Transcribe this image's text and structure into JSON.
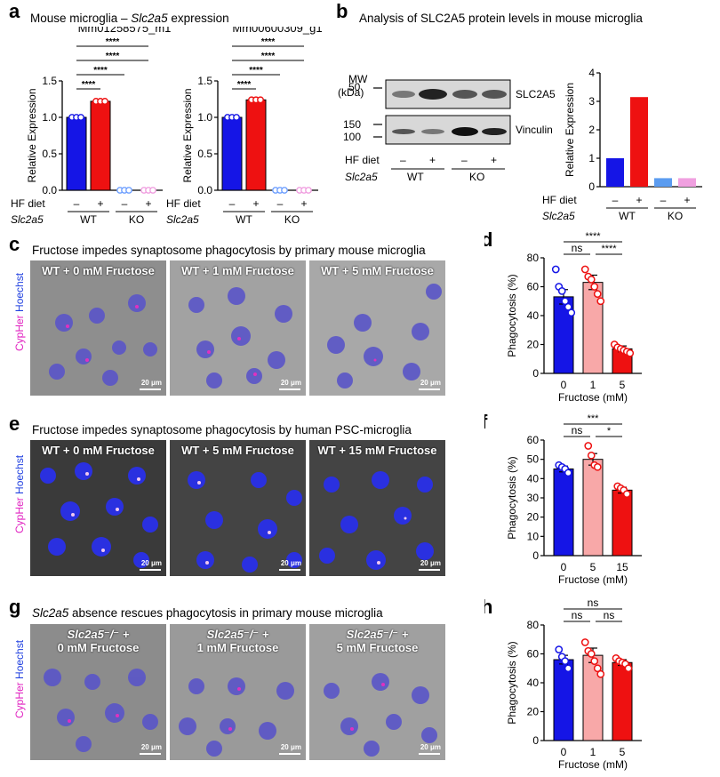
{
  "panel_a": {
    "letter": "a",
    "title_prefix": "Mouse microglia – ",
    "title_gene": "Slc2a5",
    "title_suffix": " expression",
    "hf_label": "HF diet",
    "gene_label": "Slc2a5",
    "minus": "–",
    "plus": "+",
    "wt": "WT",
    "ko": "KO",
    "sig": "****"
  },
  "panel_b": {
    "letter": "b",
    "title": "Analysis of SLC2A5 protein levels in mouse microglia",
    "mw_label_1": "MW",
    "mw_label_2": "(kDa)",
    "mw_50": "50",
    "mw_150": "150",
    "mw_100": "100",
    "band_top": "SLC2A5",
    "band_bottom": "Vinculin",
    "hf_label": "HF diet",
    "gene_label": "Slc2a5",
    "minus": "–",
    "plus": "+",
    "wt": "WT",
    "ko": "KO"
  },
  "panel_c": {
    "letter": "c",
    "title": "Fructose impedes synaptosome phagocytosis by primary mouse microglia",
    "side_label_a": "CypHer",
    "side_label_b": "Hoechst",
    "captions": [
      "WT + 0 mM Fructose",
      "WT + 1 mM Fructose",
      "WT + 5 mM Fructose"
    ],
    "scale": "20 μm"
  },
  "panel_e": {
    "letter": "e",
    "title": "Fructose impedes synaptosome phagocytosis by human PSC-microglia",
    "side_label_a": "CypHer",
    "side_label_b": "Hoechst",
    "captions": [
      "WT + 0 mM Fructose",
      "WT + 5 mM Fructose",
      "WT + 15 mM Fructose"
    ],
    "scale": "20 μm"
  },
  "panel_g": {
    "letter": "g",
    "title_gene": "Slc2a5",
    "title_rest": " absence rescues phagocytosis in primary mouse microglia",
    "side_label_a": "CypHer",
    "side_label_b": "Hoechst",
    "captions_line1": [
      "Slc2a5⁻/⁻ +",
      "Slc2a5⁻/⁻ +",
      "Slc2a5⁻/⁻ +"
    ],
    "captions_line2": [
      "0 mM Fructose",
      "1 mM Fructose",
      "5 mM Fructose"
    ],
    "scale": "20 μm"
  },
  "chart_data": [
    {
      "id": "a1",
      "type": "bar",
      "title": "Mm01258575_m1",
      "ylabel": "Relative Expression",
      "ylim": [
        0,
        1.5
      ],
      "yticks": [
        0,
        0.5,
        1.0,
        1.5
      ],
      "categories": [
        "WT –",
        "WT +",
        "KO –",
        "KO +"
      ],
      "values": [
        1.0,
        1.22,
        0.0,
        0.0
      ],
      "colors": [
        "#1515e6",
        "#ee1111",
        "#6fa0ff",
        "#f0a0e0"
      ],
      "significance": [
        "****",
        "****",
        "****",
        "****"
      ]
    },
    {
      "id": "a2",
      "type": "bar",
      "title": "Mm00600309_g1",
      "ylabel": "Relative Expression",
      "ylim": [
        0,
        1.5
      ],
      "yticks": [
        0,
        0.5,
        1.0,
        1.5
      ],
      "categories": [
        "WT –",
        "WT +",
        "KO –",
        "KO +"
      ],
      "values": [
        1.0,
        1.24,
        0.0,
        0.0
      ],
      "colors": [
        "#1515e6",
        "#ee1111",
        "#6fa0ff",
        "#f0a0e0"
      ],
      "significance": [
        "****",
        "****",
        "****",
        "****"
      ]
    },
    {
      "id": "b",
      "type": "bar",
      "ylabel": "Relative Expression",
      "ylim": [
        0,
        4
      ],
      "yticks": [
        0,
        1,
        2,
        3,
        4
      ],
      "categories": [
        "WT –",
        "WT +",
        "KO –",
        "KO +"
      ],
      "values": [
        1.0,
        3.15,
        0.3,
        0.3
      ],
      "colors": [
        "#1515e6",
        "#ee1111",
        "#5b9cf0",
        "#f0a0e0"
      ]
    },
    {
      "id": "d",
      "type": "bar",
      "letter": "d",
      "ylabel": "Phagocytosis (%)",
      "xlabel": "Fructose (mM)",
      "ylim": [
        0,
        80
      ],
      "yticks": [
        0,
        20,
        40,
        60,
        80
      ],
      "categories": [
        "0",
        "1",
        "5"
      ],
      "values": [
        53,
        63,
        17
      ],
      "errors": [
        5,
        5,
        2
      ],
      "points": [
        [
          72,
          60,
          57,
          50,
          46,
          42
        ],
        [
          72,
          67,
          65,
          60,
          55,
          50
        ],
        [
          20,
          18,
          17,
          16,
          15,
          14
        ]
      ],
      "colors": [
        "#1515e6",
        "#f8a8a8",
        "#ee1111"
      ],
      "significance": [
        {
          "from": 0,
          "to": 2,
          "label": "****"
        },
        {
          "from": 0,
          "to": 1,
          "label": "ns"
        },
        {
          "from": 1,
          "to": 2,
          "label": "****"
        }
      ]
    },
    {
      "id": "f",
      "type": "bar",
      "letter": "f",
      "ylabel": "Phagocytosis (%)",
      "xlabel": "Fructose (mM)",
      "ylim": [
        0,
        60
      ],
      "yticks": [
        0,
        10,
        20,
        30,
        40,
        50,
        60
      ],
      "categories": [
        "0",
        "5",
        "15"
      ],
      "values": [
        45,
        50,
        34
      ],
      "errors": [
        1.5,
        3,
        1.5
      ],
      "points": [
        [
          47,
          46,
          45,
          43
        ],
        [
          57,
          52,
          47,
          46
        ],
        [
          36,
          35,
          34,
          32
        ]
      ],
      "colors": [
        "#1515e6",
        "#f8a8a8",
        "#ee1111"
      ],
      "significance": [
        {
          "from": 0,
          "to": 2,
          "label": "***"
        },
        {
          "from": 0,
          "to": 1,
          "label": "ns"
        },
        {
          "from": 1,
          "to": 2,
          "label": "*"
        }
      ]
    },
    {
      "id": "h",
      "type": "bar",
      "letter": "h",
      "ylabel": "Phagocytosis (%)",
      "xlabel": "Fructose (mM)",
      "ylim": [
        0,
        80
      ],
      "yticks": [
        0,
        20,
        40,
        60,
        80
      ],
      "categories": [
        "0",
        "1",
        "5"
      ],
      "values": [
        56,
        59,
        54
      ],
      "errors": [
        3,
        5,
        2
      ],
      "points": [
        [
          63,
          58,
          55,
          50
        ],
        [
          68,
          62,
          60,
          55,
          50,
          46
        ],
        [
          57,
          55,
          54,
          53,
          50
        ]
      ],
      "colors": [
        "#1515e6",
        "#f8a8a8",
        "#ee1111"
      ],
      "significance": [
        {
          "from": 0,
          "to": 2,
          "label": "ns"
        },
        {
          "from": 0,
          "to": 1,
          "label": "ns"
        },
        {
          "from": 1,
          "to": 2,
          "label": "ns"
        }
      ]
    }
  ]
}
